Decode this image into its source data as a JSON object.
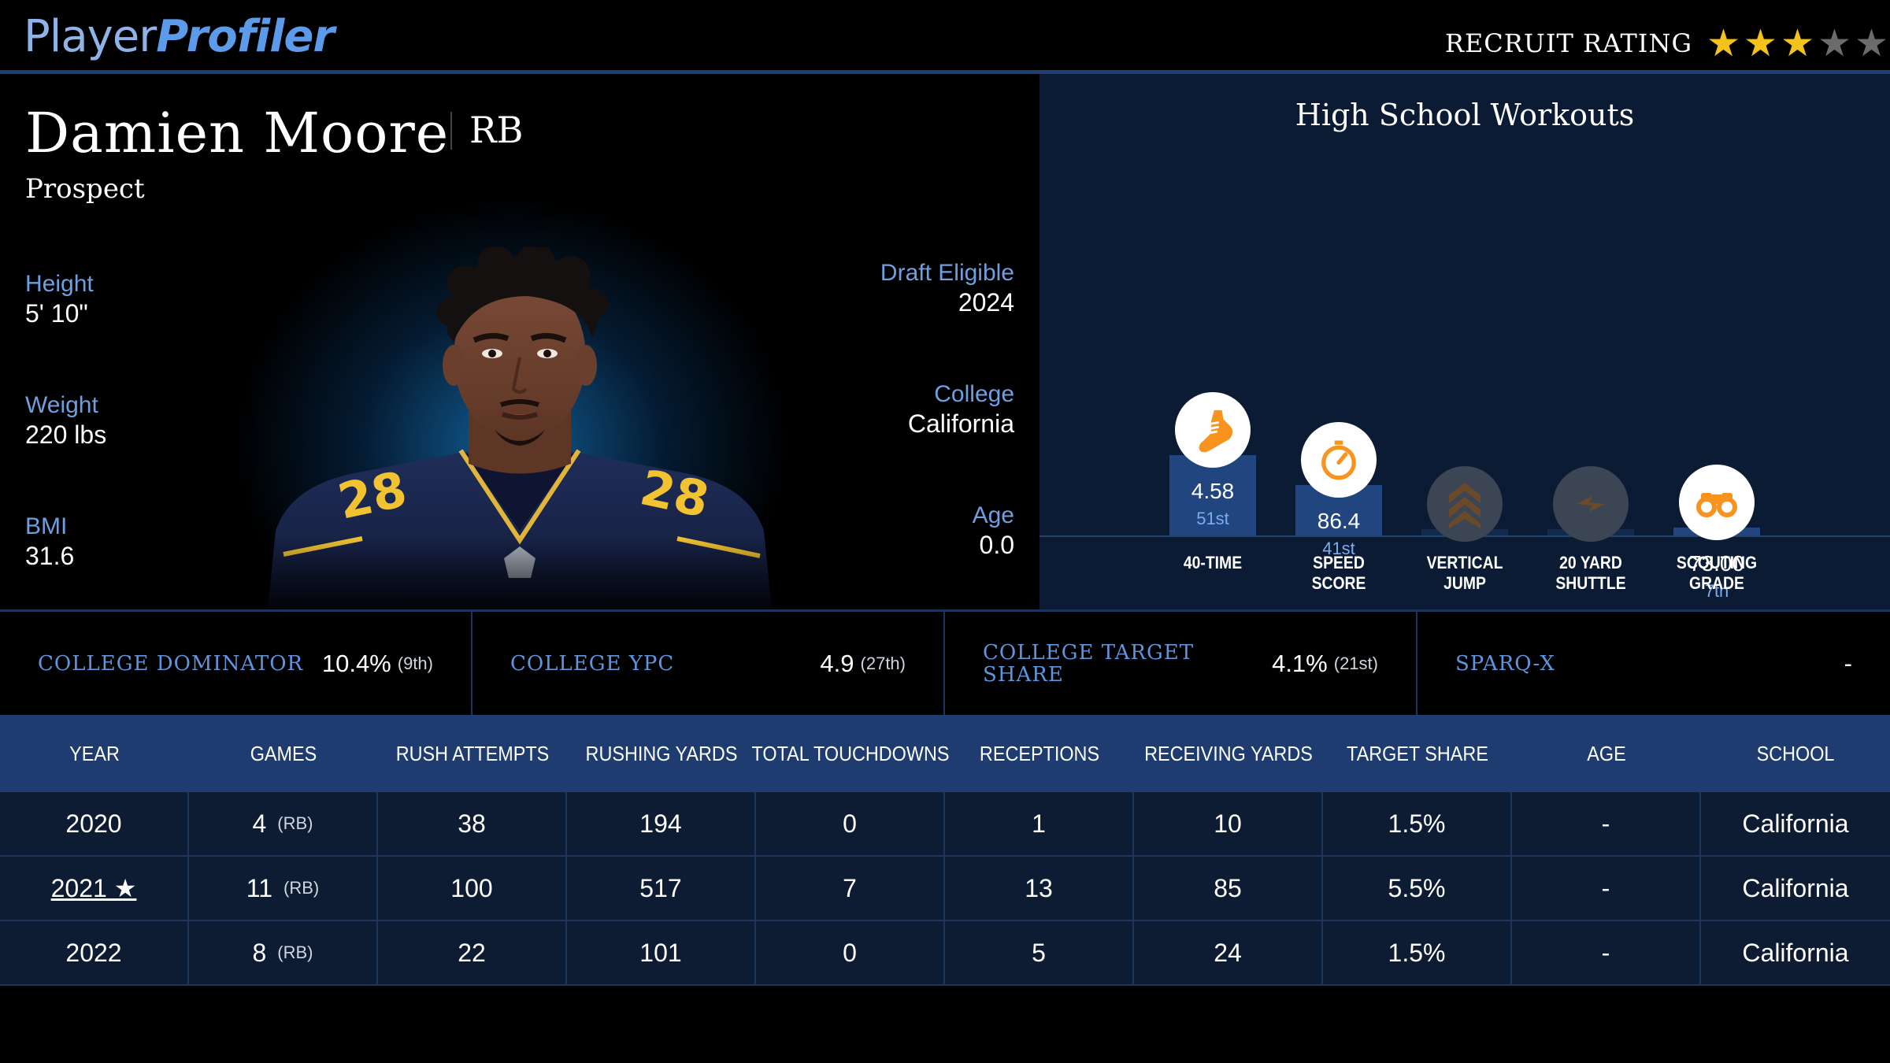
{
  "header": {
    "logo_part1": "Player",
    "logo_part2": "Profiler",
    "recruit_label": "RECRUIT RATING",
    "recruit_stars": 3,
    "recruit_stars_max": 5,
    "star_color_on": "#f4c21c",
    "star_color_off": "#6b6b6b"
  },
  "player": {
    "name": "Damien Moore",
    "position": "RB",
    "status": "Prospect",
    "height_label": "Height",
    "height": "5' 10\"",
    "weight_label": "Weight",
    "weight": "220 lbs",
    "bmi_label": "BMI",
    "bmi": "31.6",
    "draft_label": "Draft Eligible",
    "draft": "2024",
    "college_label": "College",
    "college": "California",
    "age_label": "Age",
    "age": "0.0",
    "jersey_number": "28"
  },
  "workouts": {
    "title": "High School Workouts",
    "items": [
      {
        "label_1": "40-TIME",
        "label_2": "",
        "value": "4.58",
        "rank": "51st",
        "icon": "running-shoe-icon",
        "active": true,
        "percentile": 51
      },
      {
        "label_1": "SPEED",
        "label_2": "SCORE",
        "value": "86.4",
        "rank": "41st",
        "icon": "stopwatch-icon",
        "active": true,
        "percentile": 41
      },
      {
        "label_1": "VERTICAL",
        "label_2": "JUMP",
        "value": "",
        "rank": "",
        "icon": "chevrons-up-icon",
        "active": false,
        "percentile": 0
      },
      {
        "label_1": "20 YARD",
        "label_2": "SHUTTLE",
        "value": "",
        "rank": "",
        "icon": "lightning-icon",
        "active": false,
        "percentile": 0
      },
      {
        "label_1": "SCOUTING",
        "label_2": "GRADE",
        "value": "73.00",
        "rank": "7th",
        "icon": "binoculars-icon",
        "active": true,
        "percentile": 7
      }
    ]
  },
  "metrics": [
    {
      "label": "COLLEGE DOMINATOR",
      "value": "10.4%",
      "rank": "(9th)"
    },
    {
      "label": "COLLEGE YPC",
      "value": "4.9",
      "rank": "(27th)"
    },
    {
      "label": "COLLEGE TARGET SHARE",
      "value": "4.1%",
      "rank": "(21st)"
    },
    {
      "label": "SPARQ-X",
      "value": "-",
      "rank": ""
    }
  ],
  "table": {
    "headers": [
      "YEAR",
      "GAMES",
      "RUSH ATTEMPTS",
      "RUSHING YARDS",
      "TOTAL TOUCHDOWNS",
      "RECEPTIONS",
      "RECEIVING YARDS",
      "TARGET SHARE",
      "AGE",
      "SCHOOL"
    ],
    "rows": [
      {
        "year": "2020",
        "games": "4",
        "games_pos": "(RB)",
        "rush_att": "38",
        "rush_yds": "194",
        "td": "0",
        "rec": "1",
        "rec_yds": "10",
        "target_share": "1.5%",
        "age": "-",
        "school": "California"
      },
      {
        "year": "2021 ★",
        "games": "11",
        "games_pos": "(RB)",
        "rush_att": "100",
        "rush_yds": "517",
        "td": "7",
        "rec": "13",
        "rec_yds": "85",
        "target_share": "5.5%",
        "age": "-",
        "school": "California"
      },
      {
        "year": "2022",
        "games": "8",
        "games_pos": "(RB)",
        "rush_att": "22",
        "rush_yds": "101",
        "td": "0",
        "rec": "5",
        "rec_yds": "24",
        "target_share": "1.5%",
        "age": "-",
        "school": "California"
      }
    ]
  }
}
